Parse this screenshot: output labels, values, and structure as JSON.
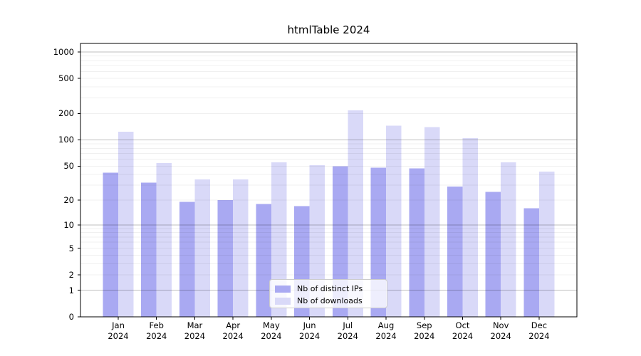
{
  "title": "htmlTable 2024",
  "colors": {
    "series_ips": "#a9a9f2",
    "series_downloads": "#d9d9f8",
    "grid_major": "rgba(0,0,0,0.25)",
    "grid_minor": "rgba(0,0,0,0.06)",
    "axis": "#000000",
    "legend_border": "#cccccc",
    "legend_bg": "rgba(255,255,255,0.8)"
  },
  "legend": {
    "items": [
      {
        "label": "Nb of distinct IPs",
        "color": "#a9a9f2"
      },
      {
        "label": "Nb of downloads",
        "color": "#d9d9f8"
      }
    ]
  },
  "chart_data": {
    "type": "bar",
    "title": "htmlTable 2024",
    "categories": [
      "Jan",
      "Feb",
      "Mar",
      "Apr",
      "May",
      "Jun",
      "Jul",
      "Aug",
      "Sep",
      "Oct",
      "Nov",
      "Dec"
    ],
    "category_year": "2024",
    "series": [
      {
        "name": "Nb of distinct IPs",
        "color": "#a9a9f2",
        "values": [
          42,
          32,
          19,
          20,
          18,
          17,
          50,
          48,
          47,
          29,
          25,
          16
        ]
      },
      {
        "name": "Nb of downloads",
        "color": "#d9d9f8",
        "values": [
          124,
          54,
          35,
          35,
          55,
          51,
          218,
          146,
          140,
          105,
          55,
          43
        ]
      }
    ],
    "xlabel": "",
    "ylabel": "",
    "yscale": "log10(value+1)",
    "yticks": [
      0,
      1,
      2,
      5,
      10,
      20,
      50,
      100,
      200,
      500,
      1000
    ],
    "ytick_labels": [
      "0",
      "1",
      "2",
      "5",
      "10",
      "20",
      "50",
      "100",
      "200",
      "500",
      "1000"
    ],
    "ylim": [
      0,
      1250
    ],
    "grid": true,
    "grid_major_at": [
      1,
      10,
      100,
      1000
    ],
    "legend_position": "lower center"
  }
}
